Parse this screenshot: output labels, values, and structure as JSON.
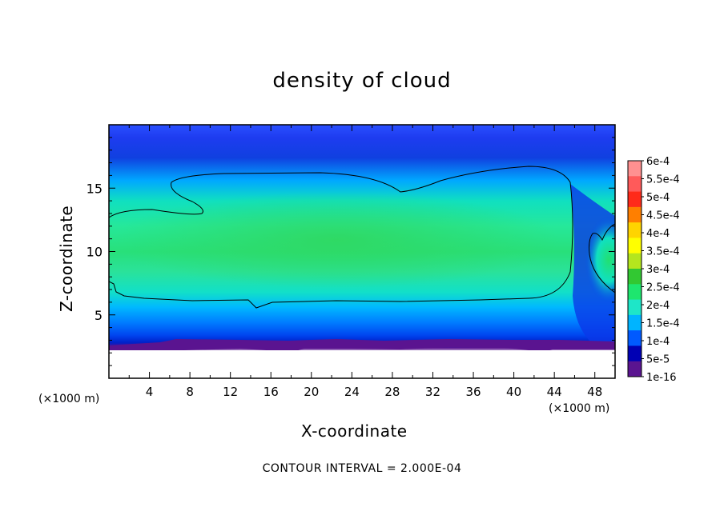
{
  "chart_data": {
    "type": "heatmap",
    "title": "density of cloud",
    "xlabel": "X-coordinate",
    "ylabel": "Z-coordinate",
    "x_units": "(×1000 m)",
    "y_units": "(×1000 m)",
    "xlim": [
      0,
      50
    ],
    "ylim": [
      0,
      20
    ],
    "x_ticks": [
      "4",
      "8",
      "12",
      "16",
      "20",
      "24",
      "28",
      "32",
      "36",
      "40",
      "44",
      "48"
    ],
    "y_ticks": [
      "5",
      "10",
      "15"
    ],
    "footer": "CONTOUR INTERVAL = 2.000E-04",
    "contour_interval": 0.0002,
    "colorbar": {
      "labels": [
        "6e-4",
        "5.5e-4",
        "5e-4",
        "4.5e-4",
        "4e-4",
        "3.5e-4",
        "3e-4",
        "2.5e-4",
        "2e-4",
        "1.5e-4",
        "1e-4",
        "5e-5",
        "1e-16"
      ],
      "colors": [
        "#ff9090",
        "#ff5a5a",
        "#ff2a1a",
        "#ff7f00",
        "#ffd400",
        "#ffff00",
        "#b4e61e",
        "#32c832",
        "#1ee66e",
        "#1ee6c8",
        "#00b4ff",
        "#005aff",
        "#0000b4",
        "#5a1490"
      ]
    },
    "cloud_band": {
      "base_z": 2.6,
      "top_z": 19.8,
      "core_z": [
        6,
        15.5
      ]
    }
  }
}
